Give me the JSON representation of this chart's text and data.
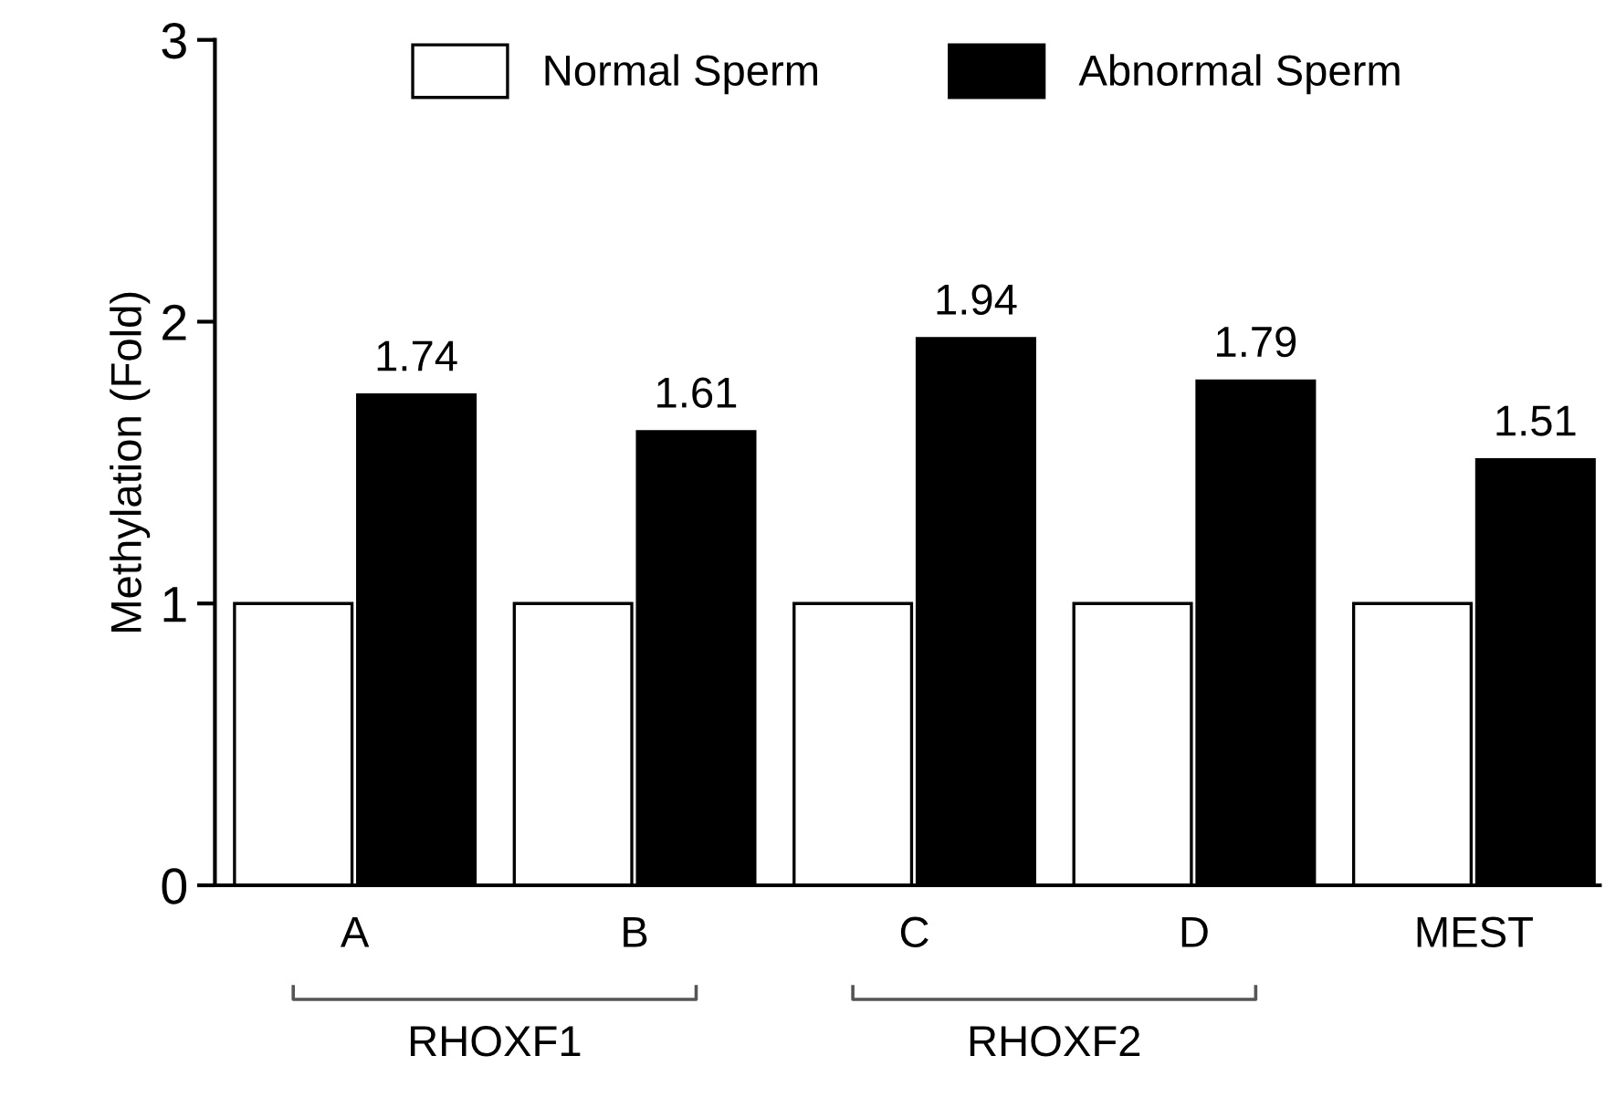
{
  "chart_data": {
    "type": "bar",
    "ylabel": "Methylation (Fold)",
    "categories": [
      "A",
      "B",
      "C",
      "D",
      "MEST"
    ],
    "series": [
      {
        "name": "Normal Sperm",
        "color": "#ffffff",
        "values": [
          1,
          1,
          1,
          1,
          1
        ]
      },
      {
        "name": "Abnormal Sperm",
        "color": "#000000",
        "values": [
          1.74,
          1.61,
          1.94,
          1.79,
          1.51
        ],
        "value_labels": [
          "1.74",
          "1.61",
          "1.94",
          "1.79",
          "1.51"
        ]
      }
    ],
    "ylim": [
      0,
      3
    ],
    "yticks": [
      0,
      1,
      2,
      3
    ],
    "grid": false,
    "legend": "top",
    "annotations": [
      "RHOXF1",
      "RHOXF2"
    ]
  }
}
